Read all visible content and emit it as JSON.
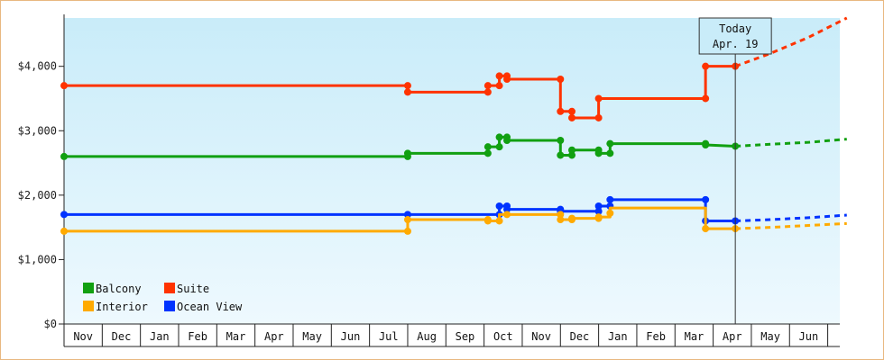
{
  "chart_data": {
    "type": "line",
    "title": "",
    "xlabel": "",
    "ylabel": "",
    "ylim": [
      0,
      4750
    ],
    "y_ticks": [
      {
        "value": 0,
        "label": "$0"
      },
      {
        "value": 1000,
        "label": "$1,000"
      },
      {
        "value": 2000,
        "label": "$2,000"
      },
      {
        "value": 3000,
        "label": "$3,000"
      },
      {
        "value": 4000,
        "label": "$4,000"
      }
    ],
    "x_axis": "months",
    "months": [
      "Nov",
      "Dec",
      "Jan",
      "Feb",
      "Mar",
      "Apr",
      "May",
      "Jun",
      "Jul",
      "Aug",
      "Sep",
      "Oct",
      "Nov",
      "Dec",
      "Jan",
      "Feb",
      "Mar",
      "Apr",
      "May",
      "Jun"
    ],
    "grid": false,
    "legend_position": "bottom-left",
    "today": {
      "line1": "Today",
      "line2": "Apr. 19",
      "x": 17.58
    },
    "series": [
      {
        "name": "Suite",
        "color": "#ff3300",
        "points": [
          [
            0.0,
            3700
          ],
          [
            9.0,
            3700
          ],
          [
            9.0,
            3600
          ],
          [
            11.1,
            3600
          ],
          [
            11.1,
            3700
          ],
          [
            11.4,
            3700
          ],
          [
            11.4,
            3850
          ],
          [
            11.6,
            3850
          ],
          [
            11.6,
            3800
          ],
          [
            13.0,
            3800
          ],
          [
            13.0,
            3300
          ],
          [
            13.3,
            3300
          ],
          [
            13.3,
            3200
          ],
          [
            14.0,
            3200
          ],
          [
            14.0,
            3500
          ],
          [
            16.8,
            3500
          ],
          [
            16.8,
            4000
          ],
          [
            17.58,
            4000
          ]
        ],
        "markers": [
          [
            0.0,
            3700
          ],
          [
            9.0,
            3700
          ],
          [
            9.0,
            3600
          ],
          [
            11.1,
            3600
          ],
          [
            11.1,
            3700
          ],
          [
            11.4,
            3700
          ],
          [
            11.4,
            3850
          ],
          [
            11.6,
            3850
          ],
          [
            11.6,
            3800
          ],
          [
            13.0,
            3800
          ],
          [
            13.0,
            3300
          ],
          [
            13.3,
            3300
          ],
          [
            13.3,
            3200
          ],
          [
            14.0,
            3200
          ],
          [
            14.0,
            3500
          ],
          [
            16.8,
            3500
          ],
          [
            16.8,
            4000
          ],
          [
            17.58,
            4000
          ]
        ],
        "projection": [
          [
            17.58,
            4000
          ],
          [
            18.5,
            4200
          ],
          [
            19.5,
            4450
          ],
          [
            20.5,
            4750
          ]
        ]
      },
      {
        "name": "Balcony",
        "color": "#11a011",
        "points": [
          [
            0.0,
            2600
          ],
          [
            9.0,
            2600
          ],
          [
            9.0,
            2650
          ],
          [
            11.1,
            2650
          ],
          [
            11.1,
            2750
          ],
          [
            11.4,
            2750
          ],
          [
            11.4,
            2900
          ],
          [
            11.6,
            2900
          ],
          [
            11.6,
            2850
          ],
          [
            13.0,
            2850
          ],
          [
            13.0,
            2620
          ],
          [
            13.3,
            2620
          ],
          [
            13.3,
            2700
          ],
          [
            14.0,
            2700
          ],
          [
            14.0,
            2650
          ],
          [
            14.3,
            2650
          ],
          [
            14.3,
            2800
          ],
          [
            16.8,
            2800
          ],
          [
            16.8,
            2780
          ],
          [
            17.58,
            2760
          ]
        ],
        "markers": [
          [
            0.0,
            2600
          ],
          [
            9.0,
            2600
          ],
          [
            9.0,
            2650
          ],
          [
            11.1,
            2650
          ],
          [
            11.1,
            2750
          ],
          [
            11.4,
            2750
          ],
          [
            11.4,
            2900
          ],
          [
            11.6,
            2900
          ],
          [
            11.6,
            2850
          ],
          [
            13.0,
            2850
          ],
          [
            13.0,
            2620
          ],
          [
            13.3,
            2620
          ],
          [
            13.3,
            2700
          ],
          [
            14.0,
            2700
          ],
          [
            14.0,
            2650
          ],
          [
            14.3,
            2650
          ],
          [
            14.3,
            2800
          ],
          [
            16.8,
            2800
          ],
          [
            16.8,
            2780
          ],
          [
            17.58,
            2760
          ]
        ],
        "projection": [
          [
            17.58,
            2760
          ],
          [
            18.5,
            2790
          ],
          [
            19.5,
            2820
          ],
          [
            20.5,
            2870
          ]
        ]
      },
      {
        "name": "Ocean View",
        "color": "#0033ff",
        "points": [
          [
            0.0,
            1700
          ],
          [
            9.0,
            1700
          ],
          [
            11.4,
            1700
          ],
          [
            11.4,
            1830
          ],
          [
            11.6,
            1830
          ],
          [
            11.6,
            1780
          ],
          [
            13.0,
            1780
          ],
          [
            13.0,
            1750
          ],
          [
            14.0,
            1750
          ],
          [
            14.0,
            1830
          ],
          [
            14.3,
            1830
          ],
          [
            14.3,
            1930
          ],
          [
            16.8,
            1930
          ],
          [
            16.8,
            1600
          ],
          [
            17.58,
            1600
          ]
        ],
        "markers": [
          [
            0.0,
            1700
          ],
          [
            9.0,
            1700
          ],
          [
            11.4,
            1700
          ],
          [
            11.4,
            1830
          ],
          [
            11.6,
            1830
          ],
          [
            11.6,
            1780
          ],
          [
            13.0,
            1780
          ],
          [
            13.0,
            1750
          ],
          [
            14.0,
            1750
          ],
          [
            14.0,
            1830
          ],
          [
            14.3,
            1830
          ],
          [
            14.3,
            1930
          ],
          [
            16.8,
            1930
          ],
          [
            16.8,
            1600
          ],
          [
            17.58,
            1600
          ]
        ],
        "projection": [
          [
            17.58,
            1600
          ],
          [
            18.5,
            1620
          ],
          [
            19.5,
            1650
          ],
          [
            20.5,
            1690
          ]
        ]
      },
      {
        "name": "Interior",
        "color": "#ffaa00",
        "points": [
          [
            0.0,
            1440
          ],
          [
            9.0,
            1440
          ],
          [
            9.0,
            1620
          ],
          [
            11.1,
            1620
          ],
          [
            11.1,
            1600
          ],
          [
            11.4,
            1600
          ],
          [
            11.4,
            1700
          ],
          [
            11.6,
            1700
          ],
          [
            11.6,
            1700
          ],
          [
            13.0,
            1700
          ],
          [
            13.0,
            1620
          ],
          [
            13.3,
            1620
          ],
          [
            13.3,
            1640
          ],
          [
            14.0,
            1640
          ],
          [
            14.0,
            1660
          ],
          [
            14.3,
            1660
          ],
          [
            14.3,
            1720
          ],
          [
            14.3,
            1800
          ],
          [
            16.8,
            1800
          ],
          [
            16.8,
            1480
          ],
          [
            17.58,
            1480
          ]
        ],
        "markers": [
          [
            0.0,
            1440
          ],
          [
            9.0,
            1440
          ],
          [
            9.0,
            1620
          ],
          [
            11.1,
            1620
          ],
          [
            11.1,
            1600
          ],
          [
            11.4,
            1600
          ],
          [
            11.6,
            1700
          ],
          [
            13.0,
            1700
          ],
          [
            13.0,
            1620
          ],
          [
            13.3,
            1620
          ],
          [
            13.3,
            1640
          ],
          [
            14.0,
            1640
          ],
          [
            14.0,
            1660
          ],
          [
            14.3,
            1720
          ],
          [
            16.8,
            1480
          ],
          [
            17.58,
            1480
          ]
        ],
        "projection": [
          [
            17.58,
            1480
          ],
          [
            18.5,
            1500
          ],
          [
            19.5,
            1530
          ],
          [
            20.5,
            1560
          ]
        ]
      }
    ],
    "legend": [
      {
        "name": "Balcony",
        "color": "#11a011"
      },
      {
        "name": "Suite",
        "color": "#ff3300"
      },
      {
        "name": "Interior",
        "color": "#ffaa00"
      },
      {
        "name": "Ocean View",
        "color": "#0033ff"
      }
    ]
  }
}
